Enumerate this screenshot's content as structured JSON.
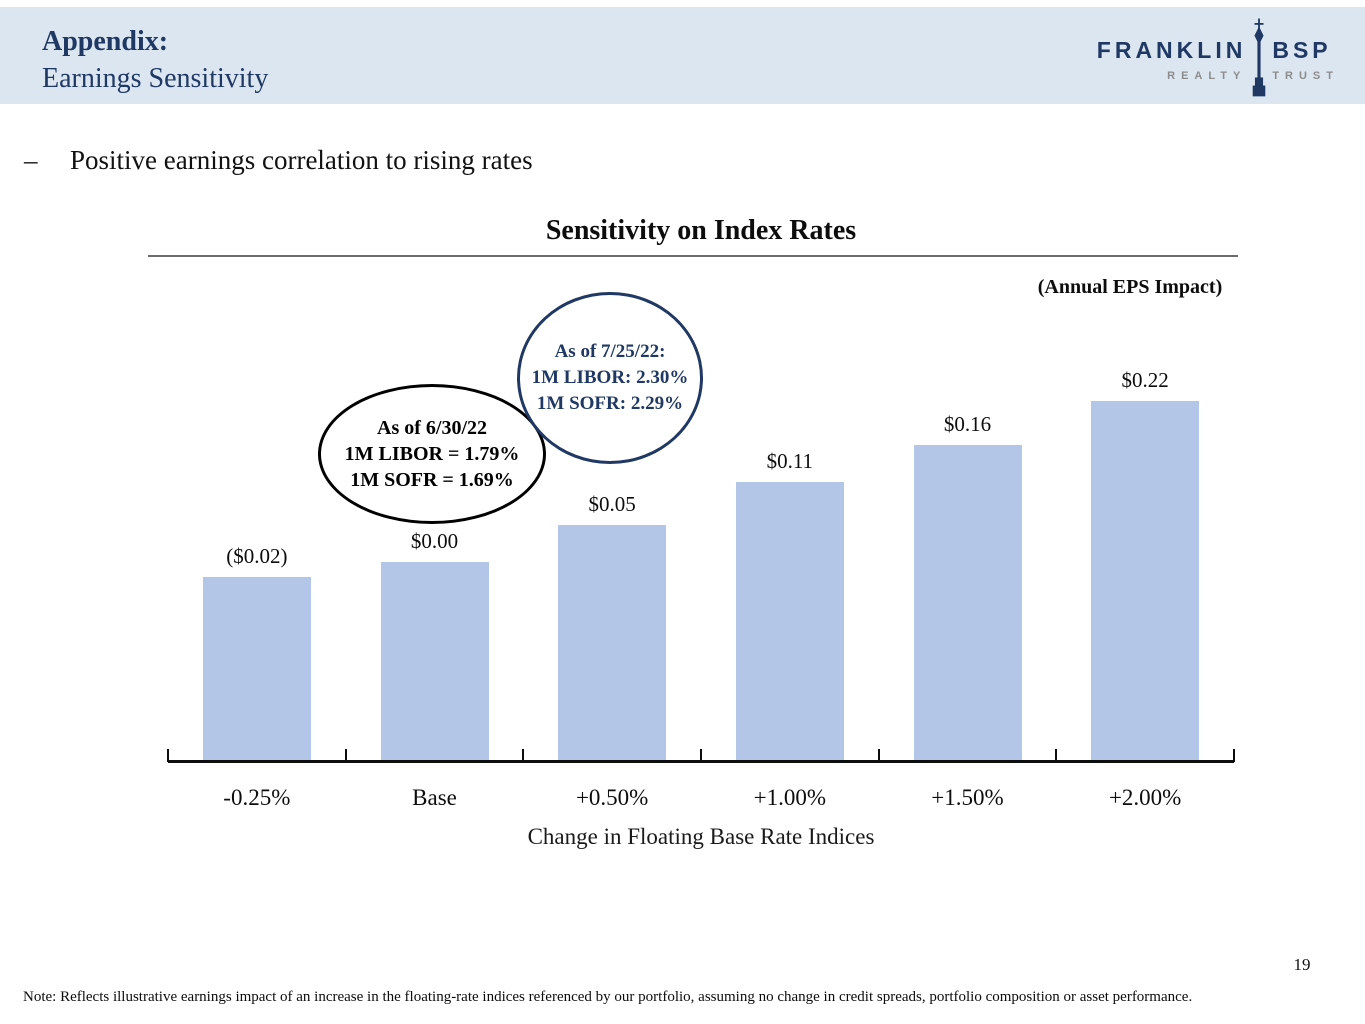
{
  "slide": {
    "header": {
      "title_bold": "Appendix:",
      "title_regular": "Earnings Sensitivity"
    },
    "logo": {
      "word1": "FRANKLIN",
      "word2": "BSP",
      "tagline1": "REALTY",
      "tagline2": "TRUST"
    },
    "bullet": {
      "marker": "–",
      "text": "Positive earnings correlation to rising rates"
    },
    "page_number": "19",
    "footer_note": "Note: Reflects illustrative earnings impact of an increase in the floating-rate indices referenced by our portfolio, assuming no change in credit spreads, portfolio composition or asset performance."
  },
  "chart_data": {
    "type": "bar",
    "title": "Sensitivity on Index Rates",
    "units_label": "(Annual EPS Impact)",
    "xlabel": "Change in Floating Base Rate Indices",
    "ylabel": "",
    "categories": [
      "-0.25%",
      "Base",
      "+0.50%",
      "+1.00%",
      "+1.50%",
      "+2.00%"
    ],
    "values": [
      -0.02,
      0.0,
      0.05,
      0.11,
      0.16,
      0.22
    ],
    "value_labels": [
      "($0.02)",
      "$0.00",
      "$0.05",
      "$0.11",
      "$0.16",
      "$0.22"
    ],
    "bar_color": "#b3c6e7",
    "grid": false,
    "legend_position": "none",
    "annotations": [
      {
        "shape": "black-ellipse",
        "lines": [
          "As of 6/30/22",
          "1M LIBOR = 1.79%",
          "1M SOFR = 1.69%"
        ]
      },
      {
        "shape": "blue-circle",
        "lines": [
          "As of 7/25/22:",
          "1M LIBOR: 2.30%",
          "1M SOFR: 2.29%"
        ]
      }
    ]
  },
  "colors": {
    "header_band": "#dce6f1",
    "navy": "#1f3864",
    "bar": "#b3c6e7",
    "tagline_gray": "#8c8c8c"
  }
}
